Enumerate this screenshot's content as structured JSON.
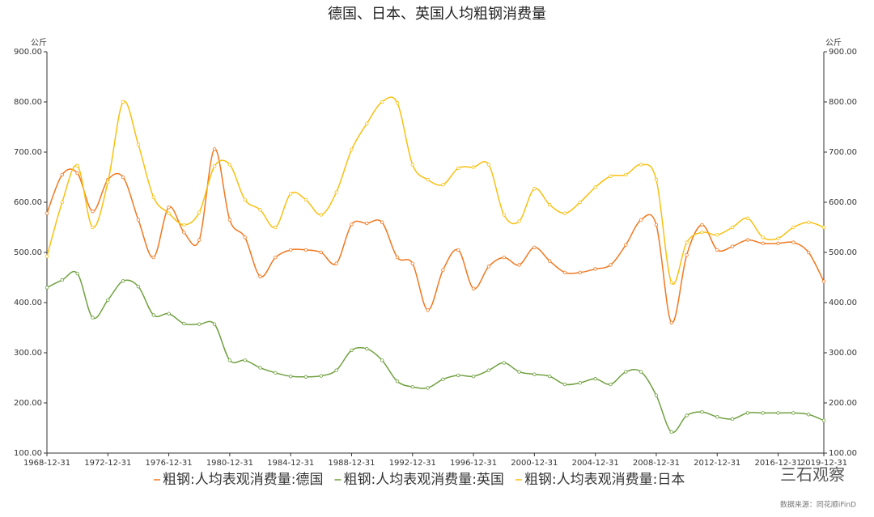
{
  "chart_data": {
    "type": "line",
    "title": "德国、日本、英国人均粗钢消费量",
    "y_unit": "公斤",
    "y2_unit": "公斤",
    "source": "数据来源：同花顺iFinD",
    "watermark": "三石观察",
    "categories": [
      "1968-12-31",
      null,
      null,
      null,
      "1972-12-31",
      null,
      null,
      null,
      "1976-12-31",
      null,
      null,
      null,
      "1980-12-31",
      null,
      null,
      null,
      "1984-12-31",
      null,
      null,
      null,
      "1988-12-31",
      null,
      null,
      null,
      "1992-12-31",
      null,
      null,
      null,
      "1996-12-31",
      null,
      null,
      null,
      "2000-12-31",
      null,
      null,
      null,
      "2004-12-31",
      null,
      null,
      null,
      "2008-12-31",
      null,
      null,
      null,
      "2012-12-31",
      null,
      null,
      null,
      "2016-12-31",
      null,
      null,
      "2019-12-31"
    ],
    "series": [
      {
        "name": "粗钢:人均表观消费量:德国",
        "color": "#f07820",
        "values": [
          578,
          655,
          658,
          582,
          645,
          650,
          565,
          490,
          590,
          540,
          525,
          706,
          565,
          530,
          452,
          490,
          505,
          505,
          500,
          478,
          556,
          558,
          560,
          490,
          478,
          385,
          465,
          505,
          428,
          472,
          490,
          475,
          510,
          483,
          460,
          460,
          467,
          475,
          515,
          565,
          555,
          360,
          495,
          555,
          505,
          512,
          525,
          518,
          518,
          520,
          500,
          442
        ]
      },
      {
        "name": "粗钢:人均表观消费量:英国",
        "color": "#70a040",
        "values": [
          430,
          445,
          458,
          370,
          405,
          443,
          432,
          375,
          378,
          358,
          357,
          357,
          285,
          285,
          270,
          260,
          253,
          252,
          254,
          265,
          305,
          308,
          285,
          243,
          232,
          230,
          247,
          255,
          253,
          265,
          280,
          262,
          257,
          253,
          237,
          240,
          248,
          237,
          262,
          262,
          215,
          142,
          175,
          182,
          172,
          168,
          180,
          180,
          180,
          180,
          177,
          165
        ]
      },
      {
        "name": "粗钢:人均表观消费量:日本",
        "color": "#f8c010",
        "values": [
          492,
          600,
          673,
          550,
          640,
          800,
          715,
          610,
          578,
          555,
          580,
          672,
          675,
          605,
          585,
          550,
          617,
          605,
          575,
          620,
          705,
          757,
          800,
          798,
          675,
          645,
          635,
          668,
          670,
          675,
          575,
          562,
          627,
          595,
          578,
          600,
          630,
          652,
          655,
          675,
          645,
          440,
          520,
          540,
          535,
          550,
          568,
          530,
          528,
          550,
          560,
          550
        ]
      }
    ],
    "ylim": [
      100,
      900
    ],
    "yticks": [
      {
        "value": 100,
        "label": "100.00"
      },
      {
        "value": 200,
        "label": "200.00"
      },
      {
        "value": 300,
        "label": "300.00"
      },
      {
        "value": 400,
        "label": "400.00"
      },
      {
        "value": 500,
        "label": "500.00"
      },
      {
        "value": 600,
        "label": "600.00"
      },
      {
        "value": 700,
        "label": "700.00"
      },
      {
        "value": 800,
        "label": "800.00"
      },
      {
        "value": 900,
        "label": "900.00"
      }
    ],
    "y2lim": [
      100,
      900
    ],
    "y2ticks": [
      {
        "value": 100,
        "label": "100.00"
      },
      {
        "value": 200,
        "label": "200.00"
      },
      {
        "value": 300,
        "label": "300.00"
      },
      {
        "value": 400,
        "label": "400.00"
      },
      {
        "value": 500,
        "label": "500.00"
      },
      {
        "value": 600,
        "label": "600.00"
      },
      {
        "value": 700,
        "label": "700.00"
      },
      {
        "value": 800,
        "label": "800.00"
      },
      {
        "value": 900,
        "label": "900.00"
      }
    ],
    "grid": false
  }
}
